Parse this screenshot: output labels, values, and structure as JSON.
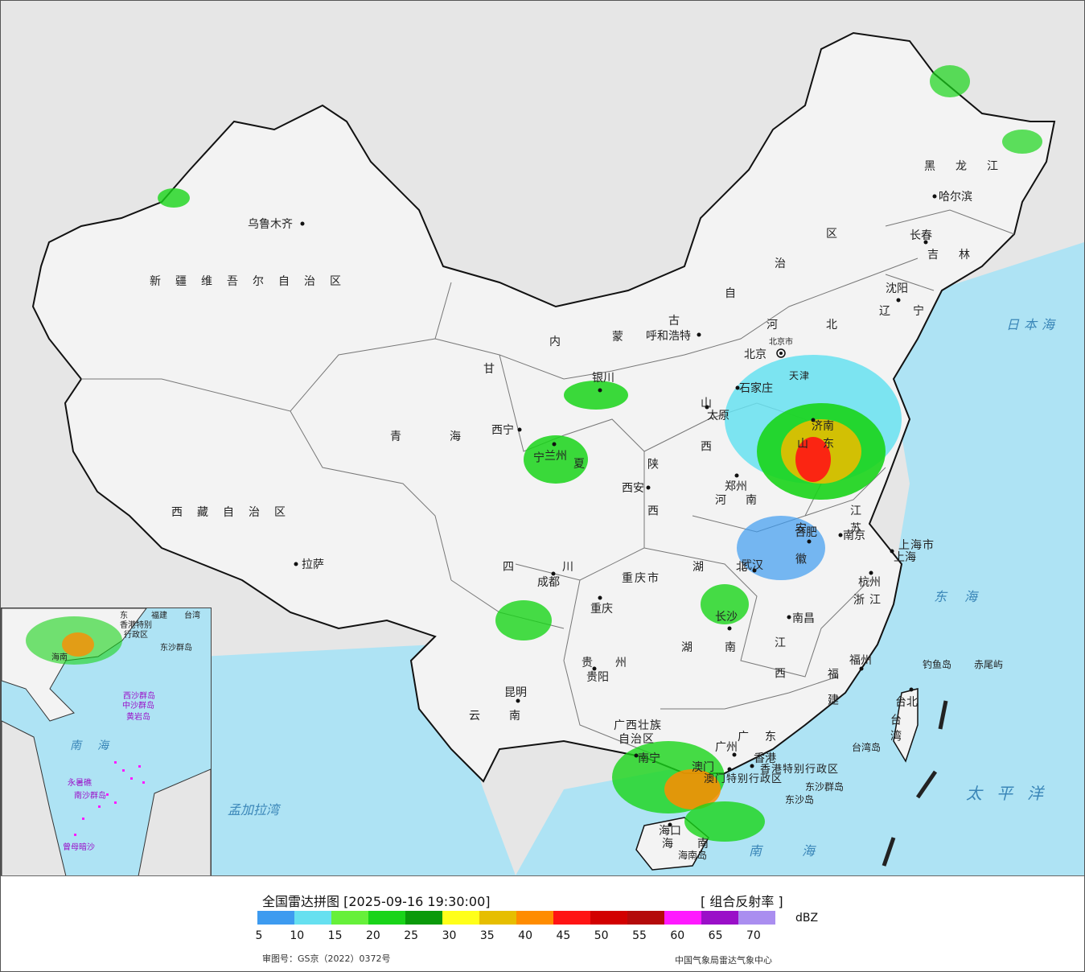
{
  "title": "全国雷达拼图 [2025-09-16 19:30:00]",
  "product": "[ 组合反射率 ]",
  "unit": "dBZ",
  "legend": {
    "colors": [
      "#3d9bf0",
      "#66e0f0",
      "#66f03a",
      "#19d419",
      "#0a9a0a",
      "#ffff19",
      "#e6be00",
      "#ff8c00",
      "#ff1414",
      "#d20000",
      "#b40a0a",
      "#ff19ff",
      "#9a0fc8",
      "#aa8ef0"
    ],
    "ticks": [
      "5",
      "10",
      "15",
      "20",
      "25",
      "30",
      "35",
      "40",
      "45",
      "50",
      "55",
      "60",
      "65",
      "70"
    ]
  },
  "footer_left": "审图号：GS京（2022）0372号",
  "footer_right": "中国气象局雷达气象中心",
  "map_labels": {
    "regions": {
      "xinjiang": "新疆维吾尔自治区",
      "tibet": "西藏自治区",
      "qinghai": "青海",
      "gansu": "甘",
      "neimenggu_1": "内",
      "neimenggu_2": "蒙",
      "neimenggu_3": "古",
      "neimenggu_4": "自",
      "neimenggu_5": "治",
      "neimenggu_6": "区",
      "heilongjiang": "黑龙江",
      "jilin": "吉林",
      "liaoning": "辽宁",
      "hebei": "河北",
      "shanxi": "山西",
      "shaanxi": "陕西",
      "henan": "河南",
      "shandong": "山东",
      "jiangsu": "江苏",
      "anhui": "安徽",
      "hubei": "湖北",
      "hunan": "湖南",
      "jiangxi": "江西",
      "zhejiang": "浙江",
      "fujian": "福建",
      "sichuan": "四川",
      "chongqing": "重庆市",
      "guizhou": "贵州",
      "yunnan": "云南",
      "guangxi_1": "广西壮族",
      "guangxi_2": "自治区",
      "guangdong": "广东",
      "hainan": "海南",
      "taiwan": "台湾",
      "shanghai": "上海市",
      "hongkong_sar": "香港特别行政区",
      "macau_sar": "澳门特别行政区",
      "ningxia_1": "宁",
      "ningxia_2": "夏",
      "tianjin": "天津"
    },
    "cities": {
      "urumqi": "乌鲁木齐",
      "lhasa": "拉萨",
      "xining": "西宁",
      "lanzhou": "兰州",
      "yinchuan": "银川",
      "hohhot": "呼和浩特",
      "beijing": "北京",
      "beijing_marker": "北京市",
      "shijiazhuang": "石家庄",
      "taiyuan": "太原",
      "xian": "西安",
      "zhengzhou": "郑州",
      "jinan": "济南",
      "hefei": "合肥",
      "nanjing": "南京",
      "shanghai": "上海",
      "hangzhou": "杭州",
      "wuhan": "武汉",
      "nanchang": "南昌",
      "changsha": "长沙",
      "fuzhou": "福州",
      "chengdu": "成都",
      "chongqing": "重庆",
      "guiyang": "贵阳",
      "kunming": "昆明",
      "nanning": "南宁",
      "guangzhou": "广州",
      "hongkong": "香港",
      "macau": "澳门",
      "haikou": "海口",
      "taibei": "台北",
      "harbin": "哈尔滨",
      "changchun": "长春",
      "shenyang": "沈阳"
    },
    "islands": {
      "diaoyu": "钓鱼岛",
      "chiwei": "赤尾屿",
      "taiwan_dao": "台湾岛",
      "hainan_dao": "海南岛",
      "dongsha_qundao": "东沙群岛",
      "dongsha_dao": "东沙岛"
    },
    "seas": {
      "sea_of_japan": "日本海",
      "east_china_sea": "东海",
      "pacific": "太平洋",
      "south_china_sea": "南海",
      "bay_of_bengal": "孟加拉湾"
    },
    "inset": {
      "south_china_sea": "南海",
      "xisha": "西沙群岛",
      "zhongsha": "中沙群岛",
      "huangyan": "黄岩岛",
      "nansha": "南沙群岛",
      "yongshu": "永暑礁",
      "zengmu": "曾母暗沙",
      "hongkong_sar": "香港特别",
      "hongkong_sar_2": "行政区",
      "taiwan": "台湾",
      "dongsha": "东沙群岛",
      "hainan": "海南",
      "guangdong": "东",
      "fujian": "福建"
    }
  }
}
